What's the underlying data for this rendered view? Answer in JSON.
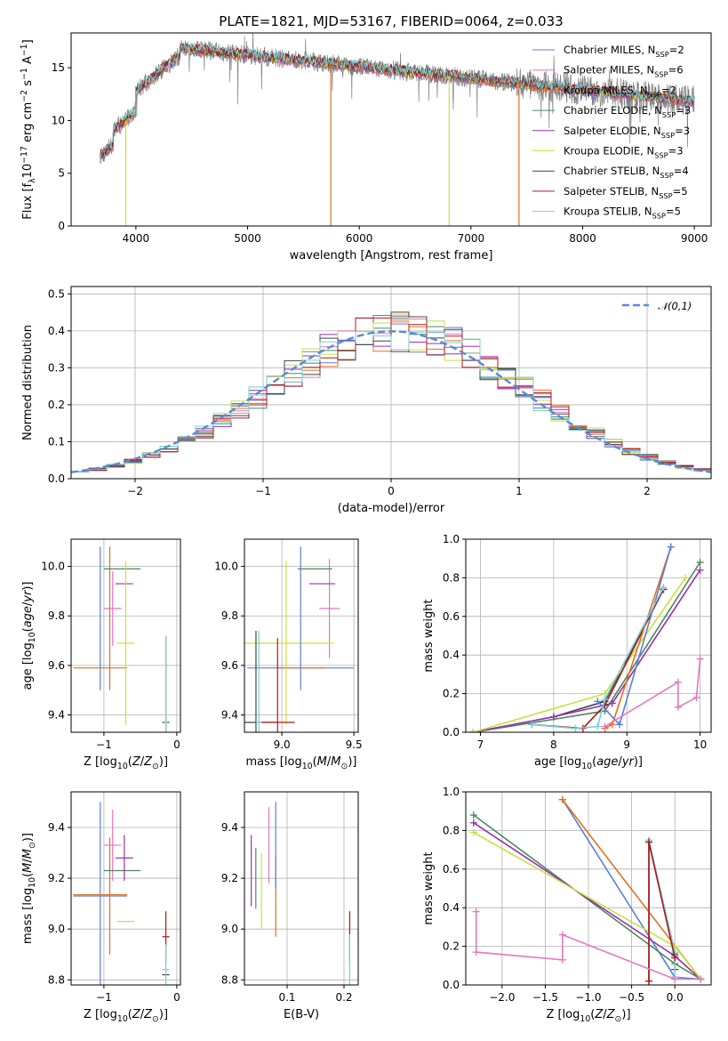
{
  "title": "PLATE=1821, MJD=53167, FIBERID=0064, z=0.033",
  "models": [
    {
      "name": "Chabrier MILES, N<sub>SSP</sub>=2",
      "color": "#5b7fd6"
    },
    {
      "name": "Salpeter MILES, N<sub>SSP</sub>=6",
      "color": "#e377c2"
    },
    {
      "name": "Kroupa MILES, N<sub>SSP</sub>=2",
      "color": "#e07020"
    },
    {
      "name": "Chabrier ELODIE, N<sub>SSP</sub>=3",
      "color": "#4a8a5a"
    },
    {
      "name": "Salpeter ELODIE, N<sub>SSP</sub>=3",
      "color": "#9a30b0"
    },
    {
      "name": "Kroupa ELODIE, N<sub>SSP</sub>=3",
      "color": "#c8e040"
    },
    {
      "name": "Chabrier STELIB, N<sub>SSP</sub>=4",
      "color": "#444444"
    },
    {
      "name": "Salpeter STELIB, N<sub>SSP</sub>=5",
      "color": "#b01818"
    },
    {
      "name": "Kroupa STELIB, N<sub>SSP</sub>=5",
      "color": "#70d0d8"
    }
  ],
  "chart_data": [
    {
      "id": "spectrum",
      "type": "line",
      "xlabel": "wavelength [Angstrom, rest frame]",
      "ylabel": "Flux [f<sub>λ</sub>10<sup>−17</sup> erg cm<sup>−2</sup> s<sup>−1</sup> A<sup>−1</sup>]",
      "xlim": [
        3420,
        9150
      ],
      "ylim": [
        0,
        18.3
      ],
      "xticks": [
        4000,
        5000,
        6000,
        7000,
        8000,
        9000
      ],
      "yticks": [
        0,
        5,
        10,
        15
      ],
      "data_color": "#7f7f7f",
      "data_range": [
        3680,
        9000
      ],
      "dropouts": [
        {
          "x": 3910,
          "model": 5
        },
        {
          "x": 5745,
          "model": 2
        },
        {
          "x": 6805,
          "model": 5
        },
        {
          "x": 7430,
          "model": 2
        }
      ],
      "legend": "upper right",
      "grid": false
    },
    {
      "id": "residuals",
      "type": "step",
      "xlabel": "(data-model)/error",
      "ylabel": "Normed distribution",
      "xlim": [
        -2.5,
        2.5
      ],
      "ylim": [
        0,
        0.52
      ],
      "xticks": [
        -2,
        -1,
        0,
        1,
        2
      ],
      "xticklabels": [
        "−2",
        "−1",
        "0",
        "1",
        "2"
      ],
      "yticks": [
        0.0,
        0.1,
        0.2,
        0.3,
        0.4,
        0.5
      ],
      "yticklabels": [
        "0.0",
        "0.1",
        "0.2",
        "0.3",
        "0.4",
        "0.5"
      ],
      "bin_edges_range": [
        -2.5,
        2.5
      ],
      "n_bins": 36,
      "reference": {
        "label": "𝒩(0,1)",
        "color": "#5b8ad6",
        "mean": 0,
        "sigma": 1
      },
      "legend": "upper right",
      "grid": true
    },
    {
      "id": "age-vs-Z",
      "type": "errorbar",
      "xlabel": "Z [log<sub>10</sub>(<i>Z</i>/<i>Z</i><sub>⊙</sub>)]",
      "ylabel": "age  [log<sub>10</sub>(<i>age</i>/<i>yr</i>)]",
      "xlim": [
        -1.45,
        0.05
      ],
      "ylim": [
        9.33,
        10.11
      ],
      "xticks": [
        -1,
        0
      ],
      "xticklabels": [
        "−1",
        "0"
      ],
      "yticks": [
        9.4,
        9.6,
        9.8,
        10.0
      ],
      "yticklabels": [
        "9.4",
        "9.6",
        "9.8",
        "10.0"
      ],
      "points": [
        {
          "m": 0,
          "x": -1.05,
          "y": 9.79,
          "xerr": 0.0,
          "yerr": 0.29
        },
        {
          "m": 2,
          "x": -0.92,
          "y": 9.79,
          "xerr": 0.0,
          "yerr": 0.29
        },
        {
          "m": 2,
          "x": -1.05,
          "y": 9.59,
          "xerr": 0.37,
          "yerr": 0.0
        },
        {
          "m": 1,
          "x": -0.88,
          "y": 9.83,
          "xerr": 0.12,
          "yerr": 0.15
        },
        {
          "m": 3,
          "x": -0.75,
          "y": 9.99,
          "xerr": 0.25,
          "yerr": 0.0
        },
        {
          "m": 4,
          "x": -0.72,
          "y": 9.93,
          "xerr": 0.12,
          "yerr": 0.0
        },
        {
          "m": 5,
          "x": -0.7,
          "y": 9.69,
          "xerr": 0.12,
          "yerr": 0.33
        },
        {
          "m": 6,
          "x": -0.15,
          "y": 9.37,
          "xerr": 0.05,
          "yerr": 0.35
        },
        {
          "m": 8,
          "x": -0.15,
          "y": 9.37,
          "xerr": 0.02,
          "yerr": 0.35
        }
      ],
      "grid": true
    },
    {
      "id": "age-vs-mass",
      "type": "errorbar",
      "xlabel": "mass [log<sub>10</sub>(<i>M</i>/<i>M</i><sub>⊙</sub>)]",
      "ylabel": "",
      "xlim": [
        8.74,
        9.53
      ],
      "ylim": [
        9.33,
        10.11
      ],
      "xticks": [
        9.0,
        9.5
      ],
      "xticklabels": [
        "9.0",
        "9.5"
      ],
      "yticks": [
        9.4,
        9.6,
        9.8,
        10.0
      ],
      "yticklabels": [
        "9.4",
        "9.6",
        "9.8",
        "10.0"
      ],
      "points": [
        {
          "m": 0,
          "x": 9.13,
          "y": 9.59,
          "xerr": 0.37,
          "yerr": 0.0
        },
        {
          "m": 2,
          "x": 9.13,
          "y": 9.59,
          "xerr": 0.17,
          "yerr": 0.0
        },
        {
          "m": 1,
          "x": 9.33,
          "y": 9.83,
          "xerr": 0.07,
          "yerr": 0.2
        },
        {
          "m": 3,
          "x": 9.23,
          "y": 9.99,
          "xerr": 0.12,
          "yerr": 0.0
        },
        {
          "m": 4,
          "x": 9.28,
          "y": 9.93,
          "xerr": 0.09,
          "yerr": 0.0
        },
        {
          "m": 5,
          "x": 9.03,
          "y": 9.69,
          "xerr": 0.33,
          "yerr": 0.33
        },
        {
          "m": 6,
          "x": 8.82,
          "y": 9.37,
          "xerr": 0.14,
          "yerr": 0.37
        },
        {
          "m": 7,
          "x": 8.97,
          "y": 9.37,
          "xerr": 0.12,
          "yerr": 0.34
        },
        {
          "m": 8,
          "x": 8.84,
          "y": 9.37,
          "xerr": 0.02,
          "yerr": 0.37
        },
        {
          "m": 0,
          "x": 9.13,
          "y": 9.79,
          "xerr": 0.0,
          "yerr": 0.29
        }
      ],
      "grid": true
    },
    {
      "id": "weight-vs-age",
      "type": "line",
      "xlabel": "age  [log<sub>10</sub>(<i>age</i>/<i>yr</i>)]",
      "ylabel": "mass weight",
      "xlim": [
        6.8,
        10.15
      ],
      "ylim": [
        0,
        1.0
      ],
      "xticks": [
        7,
        8,
        9,
        10
      ],
      "xticklabels": [
        "7",
        "8",
        "9",
        "10"
      ],
      "yticks": [
        0.0,
        0.2,
        0.4,
        0.6,
        0.8,
        1.0
      ],
      "yticklabels": [
        "0.0",
        "0.2",
        "0.4",
        "0.6",
        "0.8",
        "1.0"
      ],
      "series": [
        {
          "m": 6,
          "x": [
            6.9,
            8.0,
            8.7,
            9.5
          ],
          "y": [
            0.0,
            0.08,
            0.16,
            0.74
          ]
        },
        {
          "m": 3,
          "x": [
            6.9,
            8.7,
            10.0
          ],
          "y": [
            0.0,
            0.11,
            0.88
          ]
        },
        {
          "m": 4,
          "x": [
            6.9,
            8.0,
            8.8,
            10.0
          ],
          "y": [
            0.0,
            0.08,
            0.15,
            0.84
          ]
        },
        {
          "m": 5,
          "x": [
            6.9,
            8.7,
            9.8
          ],
          "y": [
            0.0,
            0.2,
            0.8
          ]
        },
        {
          "m": 7,
          "x": [
            7.7,
            8.4,
            8.7,
            9.5
          ],
          "y": [
            0.04,
            0.02,
            0.14,
            0.74
          ]
        },
        {
          "m": 2,
          "x": [
            8.7,
            8.8,
            9.6
          ],
          "y": [
            0.02,
            0.04,
            0.96
          ]
        },
        {
          "m": 0,
          "x": [
            8.6,
            8.9,
            9.6
          ],
          "y": [
            0.16,
            0.04,
            0.96
          ]
        },
        {
          "m": 8,
          "x": [
            7.7,
            8.3,
            8.6,
            8.7,
            9.5
          ],
          "y": [
            0.04,
            0.02,
            0.03,
            0.17,
            0.75
          ]
        },
        {
          "m": 1,
          "x": [
            8.7,
            9.7,
            9.7,
            9.95,
            10.0
          ],
          "y": [
            0.03,
            0.26,
            0.13,
            0.18,
            0.38
          ]
        }
      ],
      "grid": true
    },
    {
      "id": "mass-vs-Z",
      "type": "errorbar",
      "xlabel": "Z [log<sub>10</sub>(<i>Z</i>/<i>Z</i><sub>⊙</sub>)]",
      "ylabel": "mass [log<sub>10</sub>(<i>M</i>/<i>M</i><sub>⊙</sub>)]",
      "xlim": [
        -1.45,
        0.05
      ],
      "ylim": [
        8.78,
        9.54
      ],
      "xticks": [
        -1,
        0
      ],
      "xticklabels": [
        "−1",
        "0"
      ],
      "yticks": [
        8.8,
        9.0,
        9.2,
        9.4
      ],
      "yticklabels": [
        "8.8",
        "9.0",
        "9.2",
        "9.4"
      ],
      "points": [
        {
          "m": 0,
          "x": -1.05,
          "y": 9.13,
          "xerr": 0.37,
          "yerr": 0.37
        },
        {
          "m": 2,
          "x": -0.92,
          "y": 9.13,
          "xerr": 0.0,
          "yerr": 0.23
        },
        {
          "m": 2,
          "x": -1.05,
          "y": 9.135,
          "xerr": 0.37,
          "yerr": 0.0
        },
        {
          "m": 1,
          "x": -0.88,
          "y": 9.33,
          "xerr": 0.12,
          "yerr": 0.14
        },
        {
          "m": 3,
          "x": -0.75,
          "y": 9.23,
          "xerr": 0.25,
          "yerr": 0.0
        },
        {
          "m": 4,
          "x": -0.72,
          "y": 9.28,
          "xerr": 0.12,
          "yerr": 0.09
        },
        {
          "m": 5,
          "x": -0.7,
          "y": 9.03,
          "xerr": 0.12,
          "yerr": 0.0
        },
        {
          "m": 6,
          "x": -0.15,
          "y": 8.82,
          "xerr": 0.05,
          "yerr": 0.0
        },
        {
          "m": 7,
          "x": -0.15,
          "y": 8.97,
          "xerr": 0.05,
          "yerr": 0.1
        },
        {
          "m": 8,
          "x": -0.15,
          "y": 8.84,
          "xerr": 0.05,
          "yerr": 0.1
        }
      ],
      "grid": true
    },
    {
      "id": "mass-vs-EBV",
      "type": "errorbar",
      "xlabel": "E(B-V)",
      "ylabel": "",
      "xlim": [
        0.025,
        0.225
      ],
      "ylim": [
        8.78,
        9.54
      ],
      "xticks": [
        0.1,
        0.2
      ],
      "xticklabels": [
        "0.1",
        "0.2"
      ],
      "yticks": [
        8.8,
        9.0,
        9.2,
        9.4
      ],
      "yticklabels": [
        "8.8",
        "9.0",
        "9.2",
        "9.4"
      ],
      "points": [
        {
          "m": 4,
          "x": 0.037,
          "y": 9.23,
          "xerr": 0,
          "yerr": 0.14
        },
        {
          "m": 3,
          "x": 0.045,
          "y": 9.2,
          "xerr": 0,
          "yerr": 0.12
        },
        {
          "m": 5,
          "x": 0.055,
          "y": 9.15,
          "xerr": 0,
          "yerr": 0.15
        },
        {
          "m": 1,
          "x": 0.068,
          "y": 9.33,
          "xerr": 0,
          "yerr": 0.15
        },
        {
          "m": 2,
          "x": 0.08,
          "y": 9.13,
          "xerr": 0,
          "yerr": 0.16
        },
        {
          "m": 0,
          "x": 0.08,
          "y": 9.33,
          "xerr": 0,
          "yerr": 0.17
        },
        {
          "m": 7,
          "x": 0.21,
          "y": 8.97,
          "xerr": 0,
          "yerr": 0.1
        },
        {
          "m": 8,
          "x": 0.21,
          "y": 8.88,
          "xerr": 0,
          "yerr": 0.1
        }
      ],
      "grid": true
    },
    {
      "id": "weight-vs-Z",
      "type": "line",
      "xlabel": "Z [log<sub>10</sub>(<i>Z</i>/<i>Z</i><sub>⊙</sub>)]",
      "ylabel": "mass weight",
      "xlim": [
        -2.42,
        0.42
      ],
      "ylim": [
        0,
        1.0
      ],
      "xticks": [
        -2.0,
        -1.5,
        -1.0,
        -0.5,
        0.0
      ],
      "xticklabels": [
        "−2.0",
        "−1.5",
        "−1.0",
        "−0.5",
        "0.0"
      ],
      "yticks": [
        0.0,
        0.2,
        0.4,
        0.6,
        0.8,
        1.0
      ],
      "yticklabels": [
        "0.0",
        "0.2",
        "0.4",
        "0.6",
        "0.8",
        "1.0"
      ],
      "series": [
        {
          "m": 0,
          "x": [
            -1.3,
            0.0,
            0.3
          ],
          "y": [
            0.96,
            0.04,
            0.03
          ]
        },
        {
          "m": 2,
          "x": [
            -1.3,
            0.3
          ],
          "y": [
            0.96,
            0.03
          ]
        },
        {
          "m": 3,
          "x": [
            -2.33,
            0.0,
            0.3
          ],
          "y": [
            0.88,
            0.11,
            0.03
          ]
        },
        {
          "m": 4,
          "x": [
            -2.33,
            0.0,
            0.3
          ],
          "y": [
            0.84,
            0.15,
            0.03
          ]
        },
        {
          "m": 5,
          "x": [
            -2.33,
            0.0,
            0.3
          ],
          "y": [
            0.79,
            0.2,
            0.03
          ]
        },
        {
          "m": 6,
          "x": [
            -0.3,
            -0.3,
            0.0,
            0.0
          ],
          "y": [
            0.02,
            0.74,
            0.16,
            0.08
          ]
        },
        {
          "m": 8,
          "x": [
            -0.3,
            -0.3,
            0.0,
            0.0
          ],
          "y": [
            0.02,
            0.75,
            0.17,
            0.04
          ]
        },
        {
          "m": 7,
          "x": [
            -0.3,
            -0.3,
            0.0
          ],
          "y": [
            0.02,
            0.74,
            0.14
          ]
        },
        {
          "m": 1,
          "x": [
            -2.3,
            -2.3,
            -1.3,
            -1.3,
            0.0,
            0.3
          ],
          "y": [
            0.38,
            0.17,
            0.13,
            0.26,
            0.03,
            0.03
          ]
        }
      ],
      "grid": true
    }
  ]
}
